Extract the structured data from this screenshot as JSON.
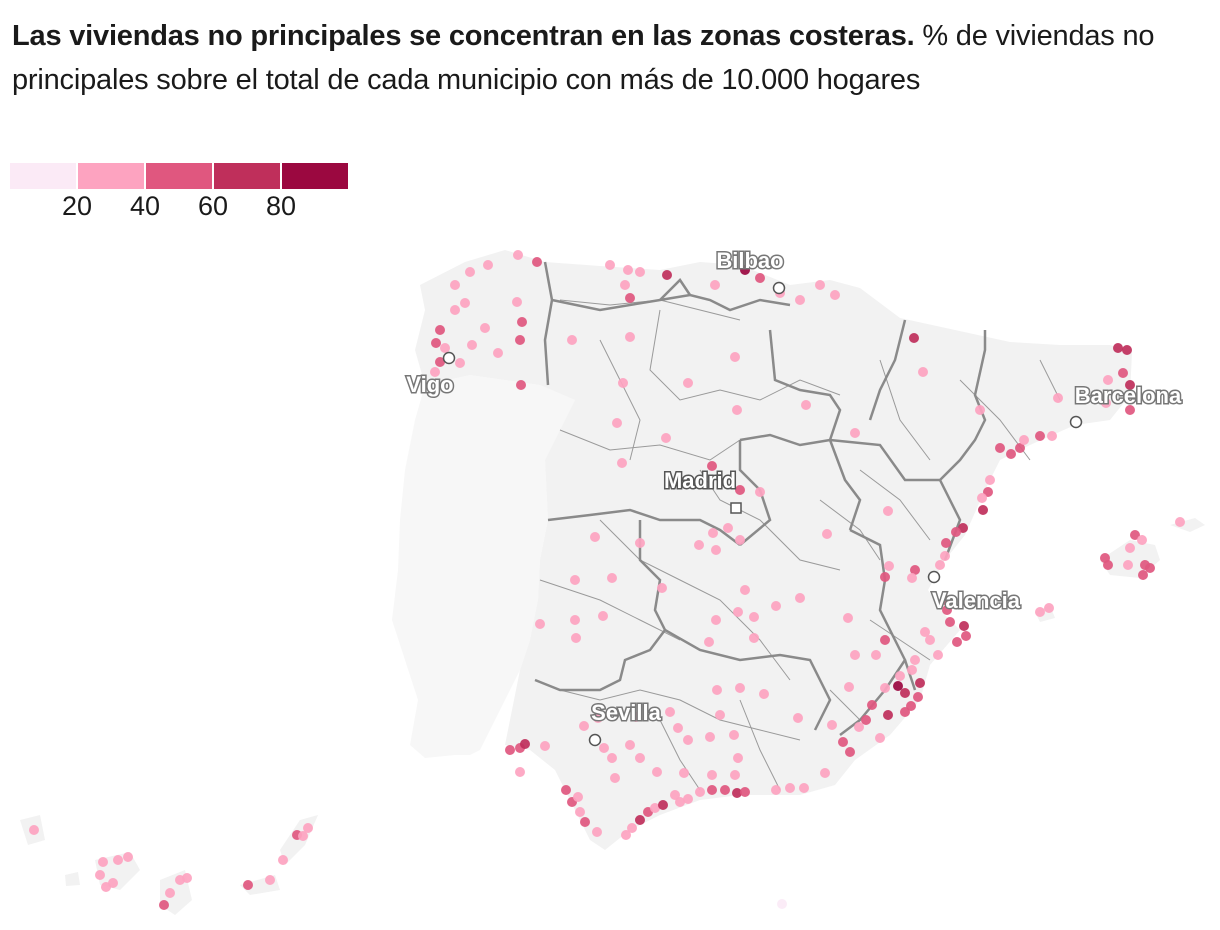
{
  "header": {
    "title": "Las viviendas no principales se concentran en las zonas costeras.",
    "subtitle": "% de viviendas no principales sobre el total de cada municipio con más de 10.000 hogares"
  },
  "legend": {
    "colors": [
      "#fbeaf6",
      "#fda3c0",
      "#e0577f",
      "#bf2f5b",
      "#9b0840"
    ],
    "ticks": [
      "20",
      "40",
      "60",
      "80"
    ]
  },
  "map": {
    "colors": {
      "land": "#f2f2f2",
      "portugal": "#f7f7f7",
      "region_border": "#8a8a8a",
      "province_border": "#9a9a9a"
    },
    "cities": [
      {
        "name": "Bilbao",
        "marker": "circle"
      },
      {
        "name": "Vigo",
        "marker": "circle"
      },
      {
        "name": "Barcelona",
        "marker": "circle"
      },
      {
        "name": "Madrid",
        "marker": "square"
      },
      {
        "name": "Valencia",
        "marker": "circle"
      },
      {
        "name": "Sevilla",
        "marker": "circle"
      }
    ]
  }
}
